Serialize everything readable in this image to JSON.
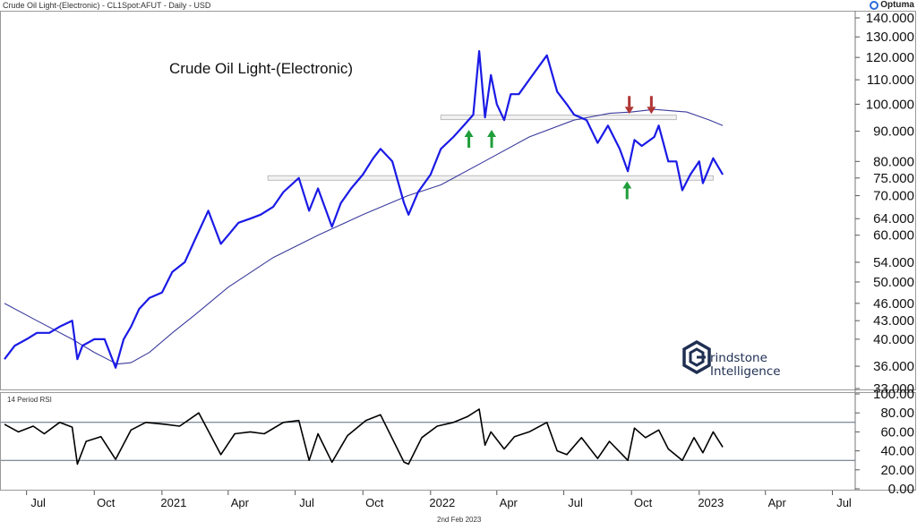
{
  "header": {
    "instrument": "Crude Oil Light-(Electronic) - CL1Spot:AFUT - Daily - USD",
    "logo_text": "Optuma",
    "logo_icon": "optuma-logo-icon"
  },
  "chart_title": "Crude Oil Light-(Electronic)",
  "footer_date": "2nd Feb 2023",
  "brand": {
    "line1": "rindstone",
    "line2": "Intelligence",
    "icon": "grindstone-g-icon"
  },
  "colors": {
    "price": "#1a1ae6",
    "ma": "#3b3b9e",
    "rsi": "#000000",
    "support_band": "#bbbbbb",
    "down_arrow": "#b03434",
    "up_arrow": "#1f9e3a",
    "axis": "#666666"
  },
  "chart_data": [
    {
      "type": "line",
      "title": "Crude Oil Light-(Electronic)",
      "scale": "log",
      "y_ticks": [
        "33.000",
        "36.000",
        "40.000",
        "43.000",
        "46.000",
        "50.000",
        "54.000",
        "60.000",
        "64.000",
        "70.000",
        "75.000",
        "80.000",
        "90.000",
        "100.000",
        "110.000",
        "120.000",
        "130.000",
        "140.000"
      ],
      "x_ticks": [
        "Jul",
        "Oct",
        "2021",
        "Apr",
        "Jul",
        "Oct",
        "2022",
        "Apr",
        "Jul",
        "Oct",
        "2023",
        "Apr",
        "Jul"
      ],
      "x_range": [
        "2020-06-01",
        "2023-08-01"
      ],
      "ylim": [
        33,
        140
      ],
      "horizontal_bands": [
        {
          "level": 95,
          "from": "2022-01-15",
          "to": "2022-12-01"
        },
        {
          "level": 75,
          "from": "2021-05-25",
          "to": "2023-01-20"
        }
      ],
      "arrows": [
        {
          "direction": "up",
          "date": "2022-02-22",
          "level": 88
        },
        {
          "direction": "up",
          "date": "2022-03-25",
          "level": 88
        },
        {
          "direction": "up",
          "date": "2022-09-25",
          "level": 72
        },
        {
          "direction": "down",
          "date": "2022-09-28",
          "level": 99
        },
        {
          "direction": "down",
          "date": "2022-10-28",
          "level": 99
        }
      ],
      "series": [
        {
          "points": [
            [
              "2020-06-01",
              37
            ],
            [
              "2020-06-15",
              39
            ],
            [
              "2020-07-01",
              40
            ],
            [
              "2020-07-15",
              41
            ],
            [
              "2020-08-01",
              41
            ],
            [
              "2020-08-15",
              42
            ],
            [
              "2020-09-01",
              43
            ],
            [
              "2020-09-08",
              37
            ],
            [
              "2020-09-15",
              39
            ],
            [
              "2020-10-01",
              40
            ],
            [
              "2020-10-15",
              40
            ],
            [
              "2020-10-30",
              35.8
            ],
            [
              "2020-11-10",
              40
            ],
            [
              "2020-11-20",
              42
            ],
            [
              "2020-12-01",
              45
            ],
            [
              "2020-12-15",
              47
            ],
            [
              "2021-01-01",
              48
            ],
            [
              "2021-01-15",
              52
            ],
            [
              "2021-02-01",
              54
            ],
            [
              "2021-02-15",
              59
            ],
            [
              "2021-03-05",
              66
            ],
            [
              "2021-03-22",
              58
            ],
            [
              "2021-04-01",
              60
            ],
            [
              "2021-04-15",
              63
            ],
            [
              "2021-05-01",
              64
            ],
            [
              "2021-05-15",
              65
            ],
            [
              "2021-06-01",
              67
            ],
            [
              "2021-06-15",
              71
            ],
            [
              "2021-07-06",
              75
            ],
            [
              "2021-07-20",
              66
            ],
            [
              "2021-08-01",
              72
            ],
            [
              "2021-08-20",
              62
            ],
            [
              "2021-09-01",
              68
            ],
            [
              "2021-09-15",
              72
            ],
            [
              "2021-10-01",
              76
            ],
            [
              "2021-10-15",
              81
            ],
            [
              "2021-10-25",
              84
            ],
            [
              "2021-11-10",
              80
            ],
            [
              "2021-11-26",
              68
            ],
            [
              "2021-12-02",
              65
            ],
            [
              "2021-12-15",
              71
            ],
            [
              "2022-01-01",
              76
            ],
            [
              "2022-01-15",
              84
            ],
            [
              "2022-02-01",
              88
            ],
            [
              "2022-02-15",
              92
            ],
            [
              "2022-02-28",
              96
            ],
            [
              "2022-03-08",
              123
            ],
            [
              "2022-03-16",
              95
            ],
            [
              "2022-03-24",
              112
            ],
            [
              "2022-04-01",
              100
            ],
            [
              "2022-04-11",
              94
            ],
            [
              "2022-04-20",
              104
            ],
            [
              "2022-05-01",
              104
            ],
            [
              "2022-05-15",
              110
            ],
            [
              "2022-06-08",
              121
            ],
            [
              "2022-06-22",
              105
            ],
            [
              "2022-07-05",
              100
            ],
            [
              "2022-07-15",
              96
            ],
            [
              "2022-08-01",
              94
            ],
            [
              "2022-08-16",
              86
            ],
            [
              "2022-08-30",
              92
            ],
            [
              "2022-09-15",
              84
            ],
            [
              "2022-09-26",
              77
            ],
            [
              "2022-10-05",
              87
            ],
            [
              "2022-10-15",
              85
            ],
            [
              "2022-11-01",
              88
            ],
            [
              "2022-11-07",
              92
            ],
            [
              "2022-11-20",
              80
            ],
            [
              "2022-12-01",
              80
            ],
            [
              "2022-12-09",
              71.5
            ],
            [
              "2022-12-20",
              76
            ],
            [
              "2023-01-01",
              80
            ],
            [
              "2023-01-06",
              73.5
            ],
            [
              "2023-01-20",
              81
            ],
            [
              "2023-02-02",
              76
            ]
          ]
        },
        {
          "name": "",
          "points": [
            [
              "2020-06-01",
              46
            ],
            [
              "2020-07-15",
              43
            ],
            [
              "2020-09-01",
              40
            ],
            [
              "2020-10-01",
              38
            ],
            [
              "2020-11-01",
              36.3
            ],
            [
              "2020-11-20",
              36.5
            ],
            [
              "2020-12-15",
              38
            ],
            [
              "2021-01-15",
              41
            ],
            [
              "2021-02-15",
              44
            ],
            [
              "2021-04-01",
              49
            ],
            [
              "2021-06-01",
              55
            ],
            [
              "2021-08-01",
              60
            ],
            [
              "2021-10-01",
              65
            ],
            [
              "2021-12-01",
              70
            ],
            [
              "2022-01-15",
              73
            ],
            [
              "2022-03-15",
              80
            ],
            [
              "2022-05-15",
              88
            ],
            [
              "2022-07-15",
              94
            ],
            [
              "2022-09-01",
              96.5
            ],
            [
              "2022-10-01",
              97
            ],
            [
              "2022-11-01",
              98
            ],
            [
              "2022-12-15",
              97
            ],
            [
              "2023-01-15",
              94
            ],
            [
              "2023-02-02",
              92
            ]
          ]
        }
      ]
    },
    {
      "type": "line",
      "title": "14 Period RSI",
      "y_ticks": [
        "0.00",
        "20.00",
        "40.00",
        "60.00",
        "80.00",
        "100.00"
      ],
      "ylim": [
        0,
        100
      ],
      "reference_lines": [
        70,
        30
      ],
      "series": [
        {
          "points": [
            [
              "2020-06-01",
              68
            ],
            [
              "2020-06-20",
              60
            ],
            [
              "2020-07-10",
              66
            ],
            [
              "2020-07-25",
              58
            ],
            [
              "2020-08-15",
              70
            ],
            [
              "2020-09-01",
              65
            ],
            [
              "2020-09-08",
              26
            ],
            [
              "2020-09-20",
              50
            ],
            [
              "2020-10-10",
              55
            ],
            [
              "2020-10-30",
              31
            ],
            [
              "2020-11-20",
              62
            ],
            [
              "2020-12-10",
              70
            ],
            [
              "2021-01-05",
              68
            ],
            [
              "2021-01-25",
              66
            ],
            [
              "2021-02-20",
              80
            ],
            [
              "2021-03-22",
              36
            ],
            [
              "2021-04-10",
              58
            ],
            [
              "2021-05-01",
              60
            ],
            [
              "2021-05-20",
              58
            ],
            [
              "2021-06-15",
              70
            ],
            [
              "2021-07-06",
              72
            ],
            [
              "2021-07-20",
              30
            ],
            [
              "2021-08-01",
              58
            ],
            [
              "2021-08-20",
              28
            ],
            [
              "2021-09-10",
              56
            ],
            [
              "2021-10-05",
              72
            ],
            [
              "2021-10-25",
              78
            ],
            [
              "2021-11-26",
              28
            ],
            [
              "2021-12-02",
              26
            ],
            [
              "2021-12-20",
              54
            ],
            [
              "2022-01-10",
              66
            ],
            [
              "2022-02-01",
              70
            ],
            [
              "2022-02-20",
              76
            ],
            [
              "2022-03-08",
              84
            ],
            [
              "2022-03-16",
              46
            ],
            [
              "2022-03-24",
              60
            ],
            [
              "2022-04-11",
              42
            ],
            [
              "2022-04-25",
              55
            ],
            [
              "2022-05-15",
              60
            ],
            [
              "2022-06-08",
              70
            ],
            [
              "2022-06-22",
              40
            ],
            [
              "2022-07-05",
              36
            ],
            [
              "2022-07-25",
              54
            ],
            [
              "2022-08-16",
              32
            ],
            [
              "2022-09-01",
              50
            ],
            [
              "2022-09-26",
              30
            ],
            [
              "2022-10-05",
              64
            ],
            [
              "2022-10-20",
              54
            ],
            [
              "2022-11-07",
              62
            ],
            [
              "2022-11-20",
              42
            ],
            [
              "2022-12-09",
              30
            ],
            [
              "2022-12-25",
              54
            ],
            [
              "2023-01-06",
              38
            ],
            [
              "2023-01-20",
              60
            ],
            [
              "2023-02-02",
              44
            ]
          ]
        }
      ]
    }
  ]
}
